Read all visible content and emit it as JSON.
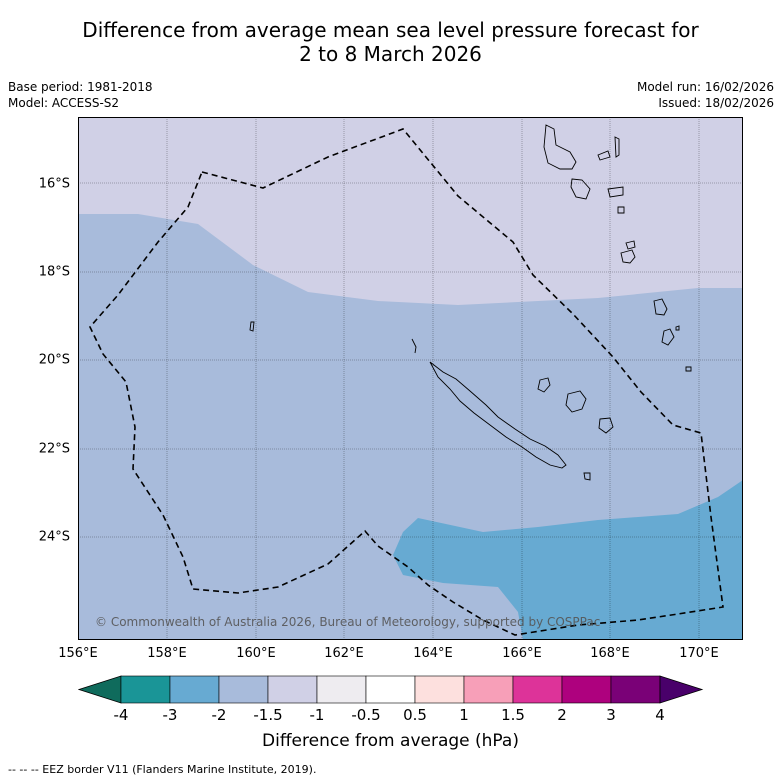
{
  "title": {
    "line1": "Difference from average mean sea level pressure forecast for",
    "line2": "2 to 8 March 2026"
  },
  "meta": {
    "base_period": "Base period: 1981-2018",
    "model": "Model: ACCESS-S2",
    "model_run": "Model run: 16/02/2026",
    "issued": "Issued: 18/02/2026"
  },
  "map": {
    "lat_labels": [
      "16°S",
      "18°S",
      "20°S",
      "22°S",
      "24°S"
    ],
    "lon_labels": [
      "156°E",
      "158°E",
      "160°E",
      "162°E",
      "164°E",
      "166°E",
      "168°E",
      "170°E"
    ],
    "copyright": "© Commonwealth of Australia 2026, Bureau of Meteorology, supported by COSPPac",
    "features": [
      "New Caledonia",
      "Vanuatu",
      "Loyalty Islands",
      "EEZ boundary"
    ]
  },
  "colorbar": {
    "labels": [
      "-4",
      "-3",
      "-2",
      "-1.5",
      "-1",
      "-0.5",
      "0.5",
      "1",
      "1.5",
      "2",
      "3",
      "4"
    ],
    "colors": [
      "#1a9597",
      "#67aad2",
      "#a8bbdb",
      "#d0d0e6",
      "#eeecf0",
      "#ffffff",
      "#fde0de",
      "#f79fb8",
      "#dd3399",
      "#ae017e",
      "#7a0177"
    ],
    "low_extend_color": "#0f6b5c",
    "high_extend_color": "#49006a",
    "title": "Difference from average (hPa)"
  },
  "footnote": "-- -- -- EEZ border V11 (Flanders Marine Institute, 2019)."
}
